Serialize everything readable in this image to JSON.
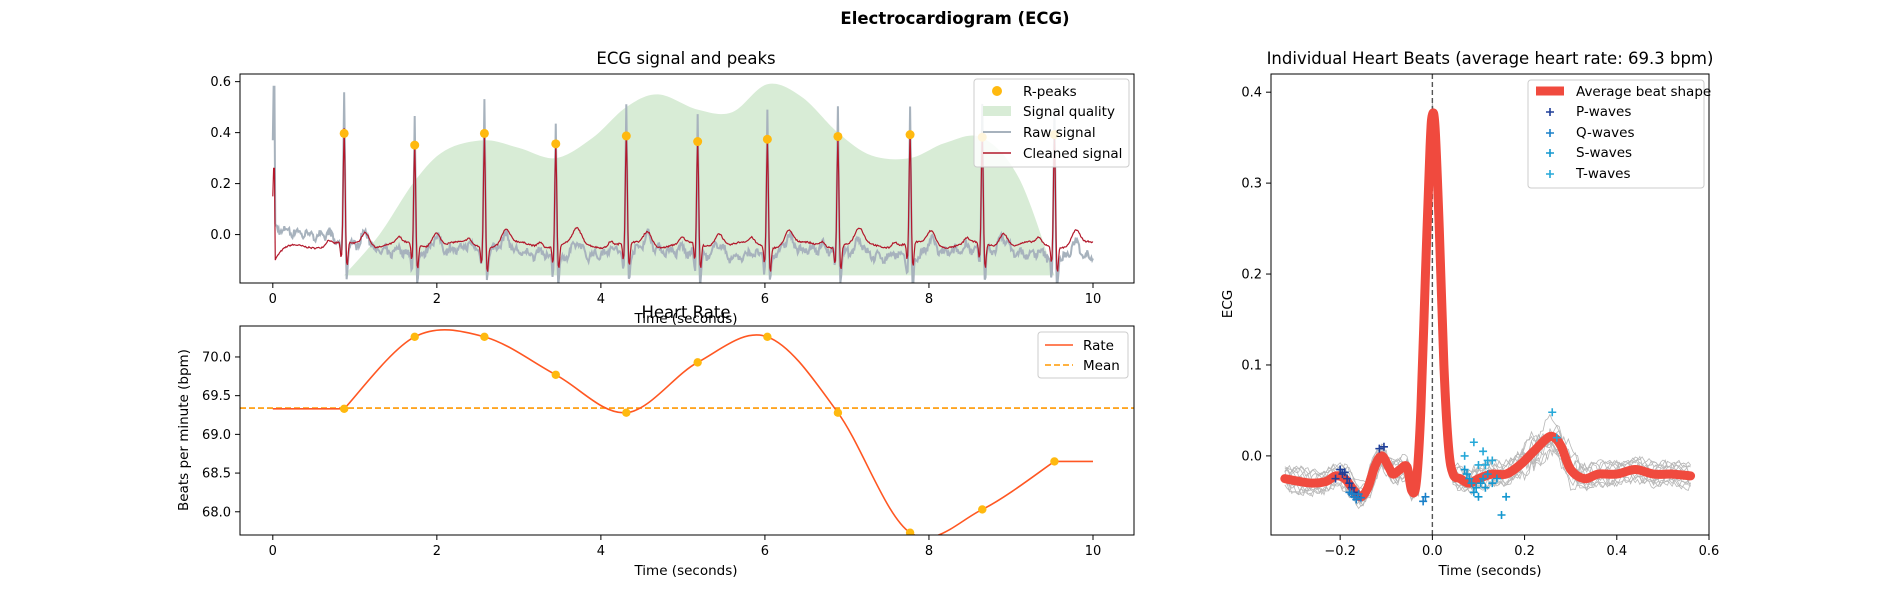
{
  "figure": {
    "suptitle": "Electrocardiogram (ECG)"
  },
  "chart_data": [
    {
      "id": "ecg",
      "type": "line",
      "title": "ECG signal and peaks",
      "xlabel": "Time (seconds)",
      "ylabel": "",
      "xlim": [
        -0.4,
        10.5
      ],
      "ylim": [
        -0.19,
        0.63
      ],
      "xticks": [
        0,
        2,
        4,
        6,
        8,
        10
      ],
      "yticks": [
        0.0,
        0.2,
        0.4,
        0.6
      ],
      "ytick_labels": [
        "0.0",
        "0.2",
        "0.4",
        "0.6"
      ],
      "legend_position": "upper right",
      "legend": [
        "R-peaks",
        "Signal quality",
        "Raw signal",
        "Cleaned signal"
      ],
      "colors": {
        "rpeaks": "#FFB90F",
        "quality": "#d8ecd6",
        "raw": "#a7b2bd",
        "clean": "#b2182b"
      },
      "series": [
        {
          "name": "R-peaks",
          "kind": "scatter",
          "x": [
            0.87,
            1.73,
            2.58,
            3.45,
            4.31,
            5.18,
            6.03,
            6.89,
            7.77,
            8.65,
            9.53
          ],
          "y": [
            0.397,
            0.351,
            0.397,
            0.356,
            0.387,
            0.365,
            0.374,
            0.385,
            0.392,
            0.382,
            0.392
          ]
        },
        {
          "name": "Signal quality",
          "kind": "area",
          "x": [
            0.87,
            1.3,
            1.73,
            2.1,
            2.58,
            3.0,
            3.45,
            3.9,
            4.31,
            4.7,
            5.18,
            5.6,
            6.03,
            6.45,
            6.89,
            7.3,
            7.77,
            8.2,
            8.65,
            9.1,
            9.53
          ],
          "y": [
            -0.16,
            0.0,
            0.21,
            0.33,
            0.37,
            0.34,
            0.3,
            0.38,
            0.5,
            0.55,
            0.49,
            0.48,
            0.59,
            0.54,
            0.4,
            0.31,
            0.3,
            0.36,
            0.38,
            0.22,
            -0.16
          ],
          "baseline": -0.16
        },
        {
          "name": "Raw signal",
          "kind": "line",
          "generated": "synthetic waveform"
        },
        {
          "name": "Cleaned signal",
          "kind": "line",
          "generated": "synthetic waveform"
        }
      ]
    },
    {
      "id": "rate",
      "type": "line",
      "title": "Heart Rate",
      "xlabel": "Time (seconds)",
      "ylabel": "Beats per minute (bpm)",
      "xlim": [
        -0.4,
        10.5
      ],
      "ylim": [
        67.7,
        70.4
      ],
      "xticks": [
        0,
        2,
        4,
        6,
        8,
        10
      ],
      "yticks": [
        68.0,
        68.5,
        69.0,
        69.5,
        70.0
      ],
      "ytick_labels": [
        "68.0",
        "68.5",
        "69.0",
        "69.5",
        "70.0"
      ],
      "legend_position": "upper right",
      "legend": [
        "Rate",
        "Mean"
      ],
      "colors": {
        "rate": "#FF5722",
        "mean": "#FF9800",
        "points": "#FFB90F"
      },
      "series": [
        {
          "name": "Rate",
          "x": [
            0.87,
            1.73,
            2.58,
            3.45,
            4.31,
            5.18,
            6.03,
            6.89,
            7.77,
            8.65,
            9.53
          ],
          "y": [
            69.33,
            70.26,
            70.26,
            69.77,
            69.28,
            69.93,
            70.26,
            69.28,
            67.73,
            68.03,
            68.65
          ]
        },
        {
          "name": "Mean",
          "y": 69.34
        }
      ]
    },
    {
      "id": "beats",
      "type": "line",
      "title": "Individual Heart Beats (average heart rate: 69.3 bpm)",
      "xlabel": "Time (seconds)",
      "ylabel": "ECG",
      "xlim": [
        -0.35,
        0.6
      ],
      "ylim": [
        -0.087,
        0.42
      ],
      "xticks": [
        -0.2,
        0.0,
        0.2,
        0.4,
        0.6
      ],
      "xtick_labels": [
        "−0.2",
        "0.0",
        "0.2",
        "0.4",
        "0.6"
      ],
      "yticks": [
        0.0,
        0.1,
        0.2,
        0.3,
        0.4
      ],
      "ytick_labels": [
        "0.0",
        "0.1",
        "0.2",
        "0.3",
        "0.4"
      ],
      "legend_position": "upper right",
      "legend": [
        "Average beat shape",
        "P-waves",
        "Q-waves",
        "S-waves",
        "T-waves"
      ],
      "colors": {
        "avg": "#f04a3e",
        "beats": "#b8b8b8",
        "p": "#1f3f99",
        "q": "#1a80c9",
        "s": "#1497cf",
        "t": "#26a8d8",
        "vline": "#555555"
      },
      "average_beat": {
        "x": [
          -0.32,
          -0.29,
          -0.26,
          -0.23,
          -0.21,
          -0.19,
          -0.17,
          -0.155,
          -0.14,
          -0.125,
          -0.11,
          -0.095,
          -0.085,
          -0.07,
          -0.055,
          -0.045,
          -0.035,
          -0.025,
          -0.015,
          -0.005,
          0.0,
          0.006,
          0.015,
          0.025,
          0.035,
          0.045,
          0.06,
          0.08,
          0.1,
          0.13,
          0.16,
          0.19,
          0.22,
          0.25,
          0.265,
          0.28,
          0.3,
          0.33,
          0.36,
          0.4,
          0.44,
          0.48,
          0.52,
          0.56
        ],
        "y": [
          -0.025,
          -0.028,
          -0.03,
          -0.028,
          -0.022,
          -0.025,
          -0.038,
          -0.045,
          -0.035,
          -0.012,
          0.0,
          -0.012,
          -0.02,
          -0.015,
          -0.012,
          -0.038,
          -0.03,
          0.05,
          0.2,
          0.34,
          0.375,
          0.36,
          0.25,
          0.1,
          0.01,
          -0.02,
          -0.025,
          -0.03,
          -0.025,
          -0.02,
          -0.02,
          -0.01,
          0.005,
          0.02,
          0.02,
          0.01,
          -0.015,
          -0.025,
          -0.02,
          -0.02,
          -0.015,
          -0.02,
          -0.02,
          -0.022
        ]
      },
      "p_waves": {
        "x": [
          -0.21,
          -0.2,
          -0.195,
          -0.19,
          -0.185,
          -0.18,
          -0.175,
          -0.17,
          -0.165,
          -0.115,
          -0.105
        ],
        "y": [
          -0.025,
          -0.015,
          -0.02,
          -0.018,
          -0.025,
          -0.03,
          -0.035,
          -0.04,
          -0.045,
          0.008,
          0.01
        ]
      },
      "q_waves": {
        "x": [
          -0.18,
          -0.175,
          -0.17,
          -0.165,
          -0.16,
          -0.155,
          -0.02,
          -0.015
        ],
        "y": [
          -0.04,
          -0.042,
          -0.045,
          -0.048,
          -0.042,
          -0.046,
          -0.05,
          -0.045
        ]
      },
      "s_waves": {
        "x": [
          0.07,
          0.075,
          0.08,
          0.085,
          0.09,
          0.095,
          0.1,
          0.105,
          0.11,
          0.115,
          0.12,
          0.13,
          0.14,
          0.15,
          0.16
        ],
        "y": [
          -0.015,
          -0.02,
          -0.025,
          -0.03,
          -0.04,
          -0.035,
          -0.045,
          -0.03,
          -0.025,
          -0.035,
          -0.02,
          -0.03,
          -0.025,
          -0.065,
          -0.045
        ]
      },
      "t_waves": {
        "x": [
          0.07,
          0.09,
          0.1,
          0.11,
          0.115,
          0.12,
          0.13,
          0.26,
          0.27
        ],
        "y": [
          0.0,
          0.015,
          -0.01,
          0.005,
          -0.01,
          -0.005,
          -0.005,
          0.048,
          0.02
        ]
      }
    }
  ]
}
